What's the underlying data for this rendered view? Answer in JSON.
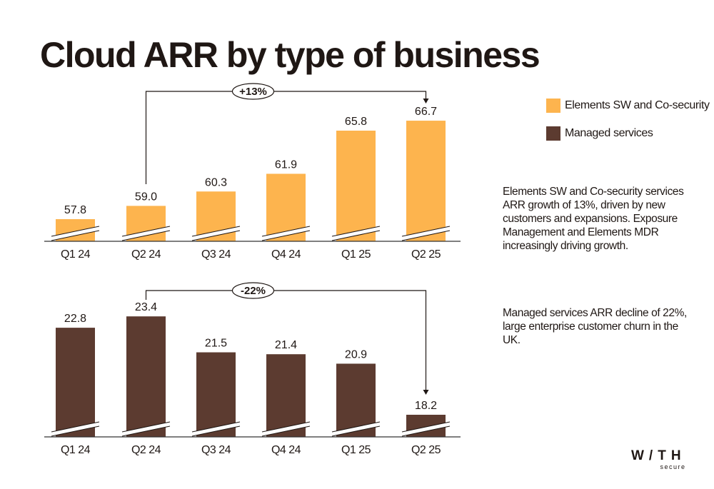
{
  "title": "Cloud ARR by type of business",
  "legend": [
    {
      "label": "Elements SW and Co-security",
      "color": "#FDB44E"
    },
    {
      "label": "Managed services",
      "color": "#5C3B30"
    }
  ],
  "notes": [
    "Elements SW and Co-security services ARR growth of 13%, driven by new customers and expansions. Exposure Management and Elements MDR increasingly driving growth.",
    "Managed services ARR decline of 22%, large enterprise customer churn in the UK."
  ],
  "logo": {
    "main": "W/TH",
    "sub": "secure"
  },
  "chart_data": [
    {
      "type": "bar",
      "name": "Elements SW and Co-security",
      "categories": [
        "Q1 24",
        "Q2 24",
        "Q3 24",
        "Q4 24",
        "Q1 25",
        "Q2 25"
      ],
      "values": [
        57.8,
        59.0,
        60.3,
        61.9,
        65.8,
        66.7
      ],
      "value_labels": [
        "57.8",
        "59.0",
        "60.3",
        "61.9",
        "65.8",
        "66.7"
      ],
      "color": "#FDB44E",
      "broken_axis": true,
      "annotation": {
        "label": "+13%",
        "from": "Q2 24",
        "to": "Q2 25"
      }
    },
    {
      "type": "bar",
      "name": "Managed services",
      "categories": [
        "Q1 24",
        "Q2 24",
        "Q3 24",
        "Q4 24",
        "Q1 25",
        "Q2 25"
      ],
      "values": [
        22.8,
        23.4,
        21.5,
        21.4,
        20.9,
        18.2
      ],
      "value_labels": [
        "22.8",
        "23.4",
        "21.5",
        "21.4",
        "20.9",
        "18.2"
      ],
      "color": "#5C3B30",
      "broken_axis": true,
      "annotation": {
        "label": "-22%",
        "from": "Q2 24",
        "to": "Q2 25"
      }
    }
  ]
}
